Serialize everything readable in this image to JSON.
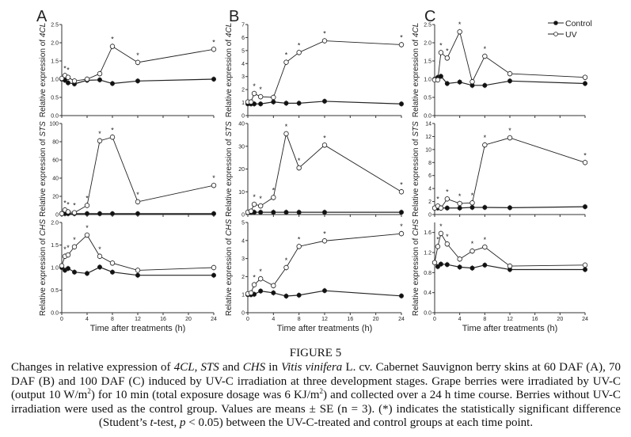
{
  "legend": {
    "control": "Control",
    "uv": "UV"
  },
  "figure_label": "FIGURE 5",
  "caption": [
    {
      "t": "Changes in relative expression of "
    },
    {
      "t": "4CL",
      "s": "i"
    },
    {
      "t": ", "
    },
    {
      "t": "STS",
      "s": "i"
    },
    {
      "t": " and "
    },
    {
      "t": "CHS",
      "s": "i"
    },
    {
      "t": " in "
    },
    {
      "t": "Vitis vinifera",
      "s": "i"
    },
    {
      "t": " L. cv. Cabernet Sauvignon berry skins at 60 DAF (A), 70 DAF (B) and 100 DAF (C) induced by UV-C irradiation at three development stages. Grape berries were irradiated by UV-C (output 10 W/m"
    },
    {
      "t": "2",
      "s": "sup"
    },
    {
      "t": ") for 10 min (total exposure dosage was 6 KJ/m"
    },
    {
      "t": "2",
      "s": "sup"
    },
    {
      "t": ") and collected over a 24 h time course. Berries without UV-C irradiation were used as the control group. Values are means ± SE (n = 3). (*) indicates the statistically significant difference (Student’s "
    },
    {
      "t": "t",
      "s": "i"
    },
    {
      "t": "-test, "
    },
    {
      "t": "p",
      "s": "i"
    },
    {
      "t": " < 0.05) between the UV-C-treated and control groups at each time point."
    }
  ],
  "colors": {
    "line": "#222222",
    "uv_fill": "#ffffff",
    "control_fill": "#111111"
  },
  "chart_data": [
    {
      "panel": "A",
      "type": "line",
      "xlabel": "Time after treatments (h)",
      "xlim": [
        0,
        24
      ],
      "xticks": [
        0,
        4,
        8,
        12,
        16,
        20,
        24
      ],
      "x": [
        0,
        0.5,
        1,
        2,
        4,
        6,
        8,
        12,
        24
      ],
      "subplots": [
        {
          "ylabel_prefix": "Relative expression of ",
          "gene": "4CL",
          "ylim": [
            0,
            2.5
          ],
          "yticks": [
            "0.0",
            "0.5",
            "1.0",
            "1.5",
            "2.0",
            "2.5"
          ],
          "series": [
            {
              "name": "Control",
              "values": [
                1.0,
                0.97,
                0.9,
                0.87,
                0.97,
                0.98,
                0.88,
                0.95,
                1.0
              ]
            },
            {
              "name": "UV",
              "values": [
                1.02,
                1.1,
                1.05,
                0.95,
                1.0,
                1.15,
                1.9,
                1.46,
                1.82
              ]
            }
          ],
          "significant_x": [
            0.5,
            1,
            8,
            12,
            24
          ]
        },
        {
          "ylabel_prefix": "Relative expression of ",
          "gene": "STS",
          "ylim": [
            0,
            100
          ],
          "yticks": [
            "0",
            "20",
            "40",
            "60",
            "80",
            "100"
          ],
          "series": [
            {
              "name": "Control",
              "values": [
                1,
                1,
                1,
                1,
                1,
                1,
                1,
                1,
                1
              ]
            },
            {
              "name": "UV",
              "values": [
                1,
                5,
                3,
                2,
                10,
                81,
                85,
                14,
                32
              ]
            }
          ],
          "significant_x": [
            0.5,
            1,
            2,
            4,
            6,
            8,
            12,
            24
          ]
        },
        {
          "ylabel_prefix": "Relative expression of ",
          "gene": "CHS",
          "ylim": [
            0,
            2.0
          ],
          "yticks": [
            "0.0",
            "0.5",
            "1.0",
            "1.5",
            "2.0"
          ],
          "series": [
            {
              "name": "Control",
              "values": [
                1.0,
                0.94,
                0.98,
                0.9,
                0.87,
                1.01,
                0.9,
                0.83,
                0.83
              ]
            },
            {
              "name": "UV",
              "values": [
                1.04,
                1.25,
                1.28,
                1.46,
                1.72,
                1.25,
                1.1,
                0.94,
                1.0
              ]
            }
          ],
          "significant_x": [
            0.5,
            1,
            2,
            4,
            6
          ]
        }
      ]
    },
    {
      "panel": "B",
      "type": "line",
      "xlabel": "Time after treatments (h)",
      "xlim": [
        0,
        24
      ],
      "xticks": [
        0,
        4,
        8,
        12,
        16,
        20,
        24
      ],
      "x": [
        0,
        0.5,
        1,
        2,
        4,
        6,
        8,
        12,
        24
      ],
      "subplots": [
        {
          "ylabel_prefix": "Relative expression of ",
          "gene": "4CL",
          "ylim": [
            0,
            7
          ],
          "yticks": [
            "0",
            "1",
            "2",
            "3",
            "4",
            "5",
            "6",
            "7"
          ],
          "series": [
            {
              "name": "Control",
              "values": [
                0.9,
                0.9,
                0.9,
                0.9,
                1.05,
                0.95,
                0.95,
                1.1,
                0.9
              ]
            },
            {
              "name": "UV",
              "values": [
                1.05,
                1.05,
                1.7,
                1.45,
                1.4,
                4.1,
                4.85,
                5.75,
                5.45
              ]
            }
          ],
          "significant_x": [
            1,
            2,
            6,
            8,
            12,
            24
          ]
        },
        {
          "ylabel_prefix": "Relative expression of ",
          "gene": "STS",
          "ylim": [
            0,
            40
          ],
          "yticks": [
            "0",
            "10",
            "20",
            "30",
            "40"
          ],
          "series": [
            {
              "name": "Control",
              "values": [
                1,
                1,
                1,
                1,
                1,
                1,
                1,
                1,
                1
              ]
            },
            {
              "name": "UV",
              "values": [
                1,
                1.5,
                4.5,
                3.8,
                7.5,
                35.5,
                20.5,
                30.5,
                10
              ]
            }
          ],
          "significant_x": [
            1,
            2,
            4,
            6,
            8,
            12,
            24
          ]
        },
        {
          "ylabel_prefix": "Relative expression of ",
          "gene": "CHS",
          "ylim": [
            0,
            5
          ],
          "yticks": [
            "0",
            "1",
            "2",
            "3",
            "4",
            "5"
          ],
          "series": [
            {
              "name": "Control",
              "values": [
                1.0,
                1.0,
                1.02,
                1.2,
                1.1,
                0.92,
                0.97,
                1.22,
                0.93
              ]
            },
            {
              "name": "UV",
              "values": [
                1.05,
                1.1,
                1.55,
                1.88,
                1.5,
                2.5,
                3.67,
                3.98,
                4.38
              ]
            }
          ],
          "significant_x": [
            1,
            2,
            6,
            8,
            12,
            24
          ]
        }
      ]
    },
    {
      "panel": "C",
      "type": "line",
      "xlabel": "Time after treatments (h)",
      "xlim": [
        0,
        24
      ],
      "xticks": [
        0,
        4,
        8,
        12,
        16,
        20,
        24
      ],
      "x": [
        0,
        0.5,
        1,
        2,
        4,
        6,
        8,
        12,
        24
      ],
      "subplots": [
        {
          "ylabel_prefix": "Relative expression of ",
          "gene": "4CL",
          "ylim": [
            0,
            2.5
          ],
          "yticks": [
            "0.0",
            "0.5",
            "1.0",
            "1.5",
            "2.0",
            "2.5"
          ],
          "series": [
            {
              "name": "Control",
              "values": [
                1.0,
                1.05,
                1.08,
                0.88,
                0.92,
                0.83,
                0.83,
                0.95,
                0.88
              ]
            },
            {
              "name": "UV",
              "values": [
                0.98,
                0.98,
                1.73,
                1.58,
                2.3,
                0.93,
                1.63,
                1.15,
                1.05
              ]
            }
          ],
          "significant_x": [
            1,
            2,
            4,
            8
          ]
        },
        {
          "ylabel_prefix": "Relative expression of ",
          "gene": "STS",
          "ylim": [
            0,
            14
          ],
          "yticks": [
            "0",
            "2",
            "4",
            "6",
            "8",
            "10",
            "12",
            "14"
          ],
          "series": [
            {
              "name": "Control",
              "values": [
                1,
                1,
                1,
                1,
                1,
                1.1,
                1.1,
                1.05,
                1.2
              ]
            },
            {
              "name": "UV",
              "values": [
                1,
                1.3,
                1.0,
                2.4,
                1.7,
                1.8,
                10.7,
                11.8,
                8.0
              ]
            }
          ],
          "significant_x": [
            0.5,
            2,
            4,
            6,
            8,
            12,
            24
          ]
        },
        {
          "ylabel_prefix": "Relative expression of ",
          "gene": "CHS",
          "ylim": [
            0,
            1.8
          ],
          "yticks": [
            "0.0",
            "0.4",
            "0.8",
            "1.2",
            "1.6"
          ],
          "series": [
            {
              "name": "Control",
              "values": [
                1.0,
                0.92,
                0.97,
                0.96,
                0.91,
                0.89,
                0.95,
                0.86,
                0.86
              ]
            },
            {
              "name": "UV",
              "values": [
                1.0,
                1.32,
                1.58,
                1.37,
                1.07,
                1.23,
                1.31,
                0.93,
                0.95
              ]
            }
          ],
          "significant_x": [
            0.5,
            1,
            2,
            6,
            8
          ]
        }
      ]
    }
  ]
}
